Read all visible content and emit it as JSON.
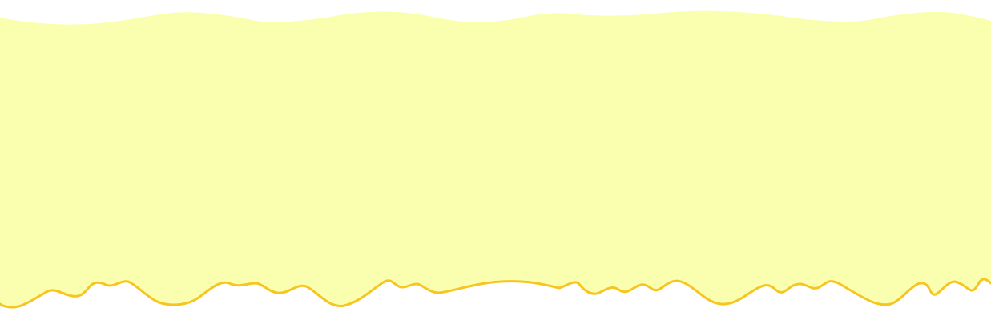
{
  "colors": {
    "background": "#ffffff",
    "fill": "#faffb0",
    "drip_outline": "#f7c51f"
  }
}
